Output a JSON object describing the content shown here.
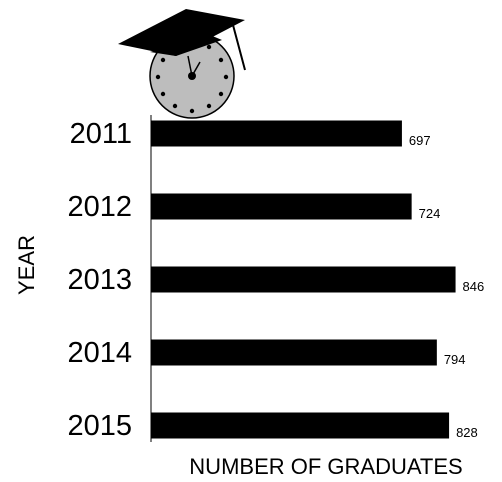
{
  "chart_data": {
    "type": "bar",
    "orientation": "horizontal",
    "categories": [
      "2011",
      "2012",
      "2013",
      "2014",
      "2015"
    ],
    "values": [
      697,
      724,
      846,
      794,
      828
    ],
    "color": "#000000",
    "xlim": [
      0,
      900
    ],
    "x_label": "NUMBER OF GRADUATES",
    "y_label": "YEAR"
  }
}
